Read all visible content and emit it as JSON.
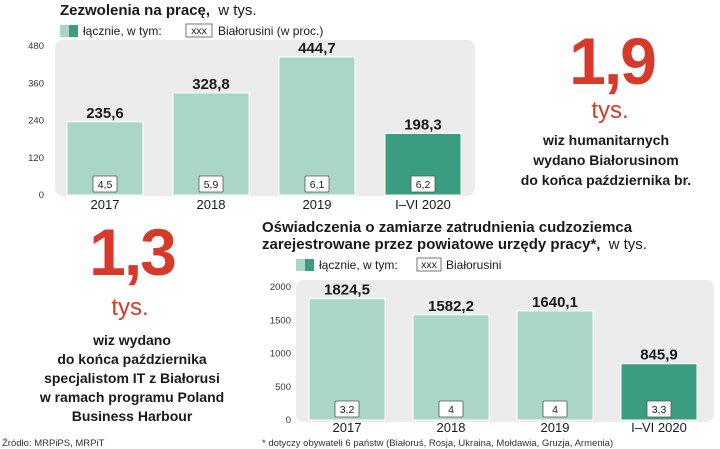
{
  "chart_data": [
    {
      "type": "bar",
      "title": "Zezwolenia na pracę,",
      "title_unit": "w tys.",
      "legend": [
        {
          "label": "łącznie, w tym:",
          "swatch": "two-tone"
        },
        {
          "label": "Białorusini (w proc.)",
          "badge": "xxx"
        }
      ],
      "categories": [
        "2017",
        "2018",
        "2019",
        "I–VI 2020"
      ],
      "series": [
        {
          "name": "łącznie",
          "values": [
            235.6,
            328.8,
            444.7,
            198.3
          ],
          "labels": [
            "235,6",
            "328,8",
            "444,7",
            "198,3"
          ]
        },
        {
          "name": "Białorusini (w proc.)",
          "values": [
            4.5,
            5.9,
            6.1,
            6.2
          ],
          "labels": [
            "4,5",
            "5,9",
            "6,1",
            "6,2"
          ]
        }
      ],
      "yticks": [
        "0",
        "120",
        "240",
        "360",
        "480"
      ],
      "ylim": [
        0,
        480
      ],
      "grid": false
    },
    {
      "type": "bar",
      "title_line1": "Oświadczenia o zamiarze zatrudnienia cudzoziemca",
      "title_line2": "zarejestrowane przez powiatowe urzędy pracy*,",
      "title_unit": "w tys.",
      "legend": [
        {
          "label": "łącznie, w tym:",
          "swatch": "two-tone"
        },
        {
          "label": "Białorusini",
          "badge": "xxx"
        }
      ],
      "categories": [
        "2017",
        "2018",
        "2019",
        "I–VI 2020"
      ],
      "series": [
        {
          "name": "łącznie",
          "values": [
            1824.5,
            1582.2,
            1640.1,
            845.9
          ],
          "labels": [
            "1824,5",
            "1582,2",
            "1640,1",
            "845,9"
          ]
        },
        {
          "name": "Białorusini",
          "values": [
            3.2,
            4,
            4,
            3.3
          ],
          "labels": [
            "3,2",
            "4",
            "4",
            "3,3"
          ]
        }
      ],
      "yticks": [
        "0",
        "500",
        "1000",
        "1500",
        "2000"
      ],
      "ylim": [
        0,
        2000
      ],
      "grid": false
    }
  ],
  "stat_visas": {
    "number": "1,9",
    "unit": "tys.",
    "lines": [
      "wiz humanitarnych",
      "wydano Białorusinom",
      "do końca października br."
    ]
  },
  "stat_it": {
    "number": "1,3",
    "unit": "tys.",
    "lines": [
      "wiz wydano",
      "do końca października",
      "specjalistom IT z Białorusi",
      "w ramach programu Poland",
      "Business Harbour"
    ]
  },
  "source": "Źródło: MRPiPS, MRPiT",
  "footnote": "* dotyczy obywateli 6 państw (Białoruś, Rosja, Ukraina, Mołdawia, Gruzja, Armenia)",
  "colors": {
    "bar_light": "#a9d6c5",
    "bar_dark": "#3a9c80",
    "bar_edge": "#ffffff",
    "panel": "#ececec",
    "accent_red": "#d73a2b",
    "badge_border": "#555555"
  }
}
